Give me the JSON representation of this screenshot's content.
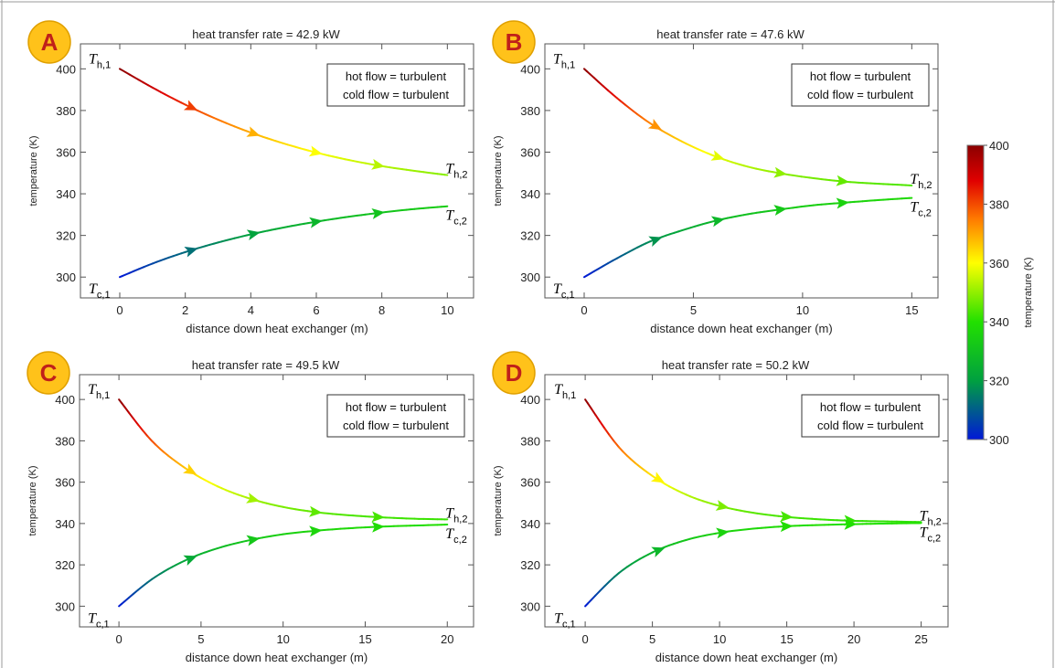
{
  "colorbar": {
    "label": "temperature (K)",
    "ticks": [
      300,
      320,
      340,
      360,
      380,
      400
    ],
    "range": [
      300,
      400
    ],
    "colors": [
      "#0018d8",
      "#00a040",
      "#22e000",
      "#ffff00",
      "#ff7a00",
      "#e00000",
      "#8b0000"
    ]
  },
  "axis_labels": {
    "x": "distance down heat exchanger (m)",
    "y": "temperature (K)"
  },
  "chart_data": [
    {
      "type": "line",
      "panel_letter": "A",
      "title": "heat transfer rate = 42.9 kW",
      "legend_lines": [
        "hot flow = turbulent",
        "cold flow = turbulent"
      ],
      "xlabel": "distance down heat exchanger (m)",
      "ylabel": "temperature (K)",
      "xlim": [
        -1.2,
        10.8
      ],
      "ylim": [
        290,
        412
      ],
      "xticks": [
        0,
        2,
        4,
        6,
        8,
        10
      ],
      "yticks": [
        300,
        320,
        340,
        360,
        380,
        400
      ],
      "end_labels": {
        "hot_start": "T_h,1",
        "hot_end": "T_h,2",
        "cold_start": "T_c,1",
        "cold_end": "T_c,2"
      },
      "series": [
        {
          "x": [
            0,
            1,
            2,
            3,
            4,
            5,
            6,
            7,
            8,
            9,
            10
          ],
          "values": [
            400,
            391,
            382.8,
            375.6,
            369.4,
            364.2,
            359.8,
            356.2,
            353.3,
            351,
            349
          ]
        },
        {
          "x": [
            0,
            1,
            2,
            3,
            4,
            5,
            6,
            7,
            8,
            9,
            10
          ],
          "values": [
            300,
            306.5,
            312,
            316.6,
            320.5,
            323.8,
            326.6,
            329,
            331,
            332.7,
            334
          ]
        }
      ]
    },
    {
      "type": "line",
      "panel_letter": "B",
      "title": "heat transfer rate = 47.6 kW",
      "legend_lines": [
        "hot flow = turbulent",
        "cold flow = turbulent"
      ],
      "xlabel": "distance down heat exchanger (m)",
      "ylabel": "temperature (K)",
      "xlim": [
        -1.8,
        16.2
      ],
      "ylim": [
        290,
        412
      ],
      "xticks": [
        0,
        5,
        10,
        15
      ],
      "yticks": [
        300,
        320,
        340,
        360,
        380,
        400
      ],
      "end_labels": {
        "hot_start": "T_h,1",
        "hot_end": "T_h,2",
        "cold_start": "T_c,1",
        "cold_end": "T_c,2"
      },
      "series": [
        {
          "x": [
            0,
            1.5,
            3,
            4.5,
            6,
            7.5,
            9,
            10.5,
            12,
            13.5,
            15
          ],
          "values": [
            400,
            386,
            374,
            365,
            358,
            353,
            349.8,
            347.5,
            345.8,
            344.8,
            344
          ]
        },
        {
          "x": [
            0,
            1.5,
            3,
            4.5,
            6,
            7.5,
            9,
            10.5,
            12,
            13.5,
            15
          ],
          "values": [
            300,
            309,
            317,
            322.5,
            327,
            330.2,
            332.5,
            334.5,
            335.8,
            337,
            338
          ]
        }
      ]
    },
    {
      "type": "line",
      "panel_letter": "C",
      "title": "heat transfer rate = 49.5 kW",
      "legend_lines": [
        "hot flow = turbulent",
        "cold flow = turbulent"
      ],
      "xlabel": "distance down heat exchanger (m)",
      "ylabel": "temperature (K)",
      "xlim": [
        -2.4,
        21.6
      ],
      "ylim": [
        290,
        412
      ],
      "xticks": [
        0,
        5,
        10,
        15,
        20
      ],
      "yticks": [
        300,
        320,
        340,
        360,
        380,
        400
      ],
      "end_labels": {
        "hot_start": "T_h,1",
        "hot_end": "T_h,2",
        "cold_start": "T_c,1",
        "cold_end": "T_c,2"
      },
      "series": [
        {
          "x": [
            0,
            2,
            4,
            6,
            8,
            10,
            12,
            14,
            16,
            18,
            20
          ],
          "values": [
            400,
            380,
            367,
            358,
            352,
            348,
            345.5,
            344,
            343,
            342.3,
            342
          ]
        },
        {
          "x": [
            0,
            2,
            4,
            6,
            8,
            10,
            12,
            14,
            16,
            18,
            20
          ],
          "values": [
            300,
            313,
            322,
            328,
            332,
            334.8,
            336.5,
            337.7,
            338.5,
            339,
            339.5
          ]
        }
      ]
    },
    {
      "type": "line",
      "panel_letter": "D",
      "title": "heat transfer rate = 50.2 kW",
      "legend_lines": [
        "hot flow = turbulent",
        "cold flow = turbulent"
      ],
      "xlabel": "distance down heat exchanger (m)",
      "ylabel": "temperature (K)",
      "xlim": [
        -3,
        27
      ],
      "ylim": [
        290,
        412
      ],
      "xticks": [
        0,
        5,
        10,
        15,
        20,
        25
      ],
      "yticks": [
        300,
        320,
        340,
        360,
        380,
        400
      ],
      "end_labels": {
        "hot_start": "T_h,1",
        "hot_end": "T_h,2",
        "cold_start": "T_c,1",
        "cold_end": "T_c,2"
      },
      "series": [
        {
          "x": [
            0,
            2.5,
            5,
            7.5,
            10,
            12.5,
            15,
            17.5,
            20,
            22.5,
            25
          ],
          "values": [
            400,
            377,
            363,
            354,
            348.5,
            345.2,
            343.2,
            342,
            341.3,
            341,
            340.7
          ]
        },
        {
          "x": [
            0,
            2.5,
            5,
            7.5,
            10,
            12.5,
            15,
            17.5,
            20,
            22.5,
            25
          ],
          "values": [
            300,
            316,
            326,
            332,
            335.5,
            337.5,
            338.7,
            339.3,
            339.7,
            340,
            340.2
          ]
        }
      ]
    }
  ]
}
